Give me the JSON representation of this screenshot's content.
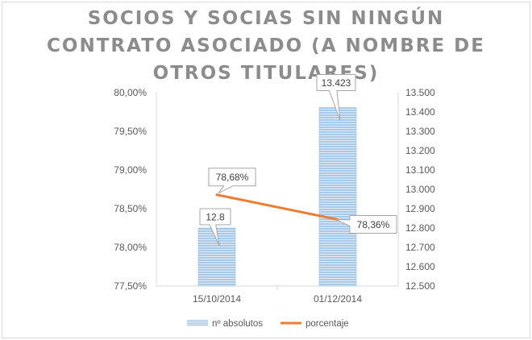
{
  "chart_data": {
    "type": "bar+line",
    "title_lines": [
      "SOCIOS Y SOCIAS SIN NINGÚN",
      "CONTRATO ASOCIADO (A NOMBRE DE",
      "OTROS TITULARES)"
    ],
    "categories": [
      "15/10/2014",
      "01/12/2014"
    ],
    "series": [
      {
        "name": "nº absolutos",
        "type": "bar",
        "axis": "right",
        "values": [
          12800,
          13423
        ],
        "labels": [
          "12.8",
          "13.423"
        ],
        "color": "#9dc3e6"
      },
      {
        "name": "porcentaje",
        "type": "line",
        "axis": "left",
        "values": [
          78.68,
          78.36
        ],
        "labels": [
          "78,68%",
          "78,36%"
        ],
        "color": "#ed7d31"
      }
    ],
    "y_left": {
      "min": 77.5,
      "max": 80.0,
      "step": 0.5,
      "ticks": [
        "77,50%",
        "78,00%",
        "78,50%",
        "79,00%",
        "79,50%",
        "80,00%"
      ]
    },
    "y_right": {
      "min": 12500,
      "max": 13500,
      "step": 100,
      "ticks": [
        "12.500",
        "12.600",
        "12.700",
        "12.800",
        "12.900",
        "13.000",
        "13.100",
        "13.200",
        "13.300",
        "13.400",
        "13.500"
      ]
    },
    "grid": false,
    "legend_position": "bottom",
    "legend": [
      {
        "name": "nº absolutos",
        "kind": "bar",
        "color": "#9dc3e6"
      },
      {
        "name": "porcentaje",
        "kind": "line",
        "color": "#ed7d31"
      }
    ]
  }
}
